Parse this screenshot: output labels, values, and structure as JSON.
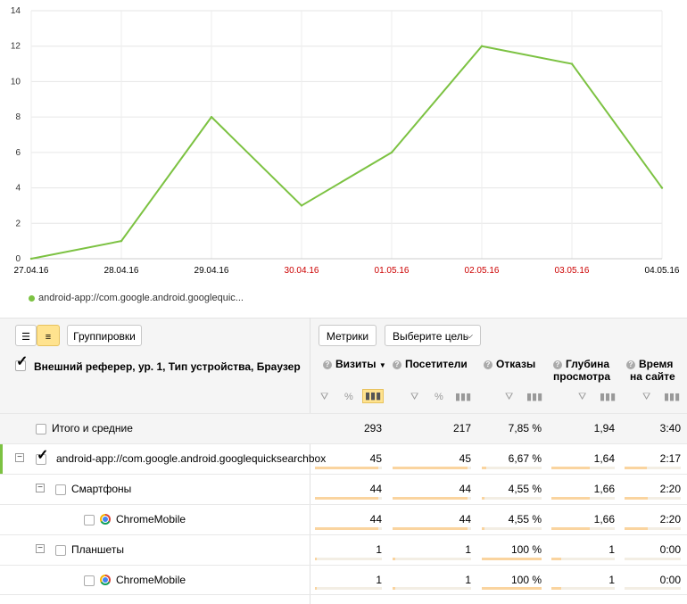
{
  "chart_data": {
    "type": "line",
    "x": [
      "27.04.16",
      "28.04.16",
      "29.04.16",
      "30.04.16",
      "01.05.16",
      "02.05.16",
      "03.05.16",
      "04.05.16"
    ],
    "x_colors": [
      "#000000",
      "#000000",
      "#000000",
      "#cc0000",
      "#cc0000",
      "#cc0000",
      "#cc0000",
      "#000000"
    ],
    "series": [
      {
        "name": "android-app://com.google.android.googlequic...",
        "values": [
          0,
          1,
          8,
          3,
          6,
          12,
          11,
          4
        ],
        "color": "#7cc242"
      }
    ],
    "ylim": [
      0,
      14
    ],
    "yticks": [
      0,
      2,
      4,
      6,
      8,
      10,
      12,
      14
    ],
    "grid": true
  },
  "legend": {
    "label": "android-app://com.google.android.googlequic..."
  },
  "toolbar": {
    "groupings": "Группировки",
    "metrics": "Метрики",
    "goal": "Выберите цель"
  },
  "header": {
    "dimensions": "Внешний реферер, ур. 1, Тип устройства, Браузер",
    "visits": "Визиты",
    "visitors": "Посетители",
    "bounces": "Отказы",
    "depth_1": "Глубина",
    "depth_2": "просмотра",
    "time_1": "Время",
    "time_2": "на сайте"
  },
  "rows": [
    {
      "label": "Итого и средние",
      "visits": "293",
      "visitors": "217",
      "bounce": "7,85 %",
      "depth": "1,94",
      "time": "3:40"
    },
    {
      "label": "android-app://com.google.android.googlequicksearchbox",
      "visits": "45",
      "visitors": "45",
      "bounce": "6,67 %",
      "depth": "1,64",
      "time": "2:17"
    },
    {
      "label": "Смартфоны",
      "visits": "44",
      "visitors": "44",
      "bounce": "4,55 %",
      "depth": "1,66",
      "time": "2:20"
    },
    {
      "label": "ChromeMobile",
      "visits": "44",
      "visitors": "44",
      "bounce": "4,55 %",
      "depth": "1,66",
      "time": "2:20"
    },
    {
      "label": "Планшеты",
      "visits": "1",
      "visitors": "1",
      "bounce": "100 %",
      "depth": "1",
      "time": "0:00"
    },
    {
      "label": "ChromeMobile",
      "visits": "1",
      "visitors": "1",
      "bounce": "100 %",
      "depth": "1",
      "time": "0:00"
    }
  ],
  "bar_fractions": [
    {
      "visits": 0,
      "visitors": 0,
      "bounce": 0,
      "depth": 0,
      "time": 0
    },
    {
      "visits": 0.95,
      "visitors": 0.95,
      "bounce": 0.07,
      "depth": 0.6,
      "time": 0.4
    },
    {
      "visits": 0.95,
      "visitors": 0.95,
      "bounce": 0.05,
      "depth": 0.6,
      "time": 0.42
    },
    {
      "visits": 0.95,
      "visitors": 0.95,
      "bounce": 0.05,
      "depth": 0.6,
      "time": 0.42
    },
    {
      "visits": 0.03,
      "visitors": 0.03,
      "bounce": 1.0,
      "depth": 0.16,
      "time": 0.0
    },
    {
      "visits": 0.03,
      "visitors": 0.03,
      "bounce": 1.0,
      "depth": 0.16,
      "time": 0.0
    }
  ]
}
